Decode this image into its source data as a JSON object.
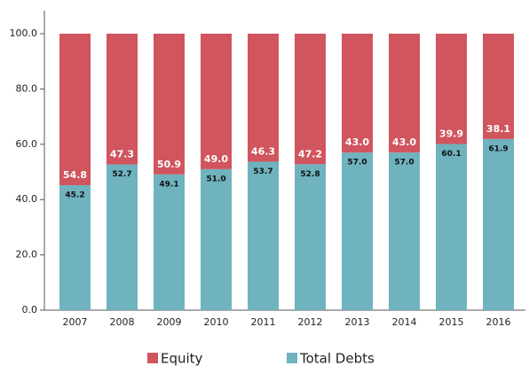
{
  "chart_data": {
    "type": "stacked_bar",
    "categories": [
      "2007",
      "2008",
      "2009",
      "2010",
      "2011",
      "2012",
      "2013",
      "2014",
      "2015",
      "2016"
    ],
    "series": [
      {
        "name": "Equity",
        "color": "#d0555e",
        "values": [
          54.8,
          47.3,
          50.9,
          49.0,
          46.3,
          47.2,
          43.0,
          43.0,
          39.9,
          38.1
        ],
        "value_labels": [
          "54.8",
          "47.3",
          "50.9",
          "49.0",
          "46.3",
          "47.2",
          "43.0",
          "43.0",
          "39.9",
          "38.1"
        ]
      },
      {
        "name": "Total Debts",
        "color": "#6fb3bf",
        "values": [
          45.2,
          52.7,
          49.1,
          51.0,
          53.7,
          52.8,
          57.0,
          57.0,
          60.1,
          61.9
        ],
        "value_labels": [
          "45.2",
          "52.7",
          "49.1",
          "51.0",
          "53.7",
          "52.8",
          "57.0",
          "57.0",
          "60.1",
          "61.9"
        ]
      }
    ],
    "ylim": [
      0,
      100
    ],
    "yticks": [
      {
        "value": 0,
        "label": "0.0"
      },
      {
        "value": 20,
        "label": "20.0"
      },
      {
        "value": 40,
        "label": "40.0"
      },
      {
        "value": 60,
        "label": "60.0"
      },
      {
        "value": 80,
        "label": "80.0"
      },
      {
        "value": 100,
        "label": "100.0"
      }
    ],
    "legend": "bottom"
  }
}
